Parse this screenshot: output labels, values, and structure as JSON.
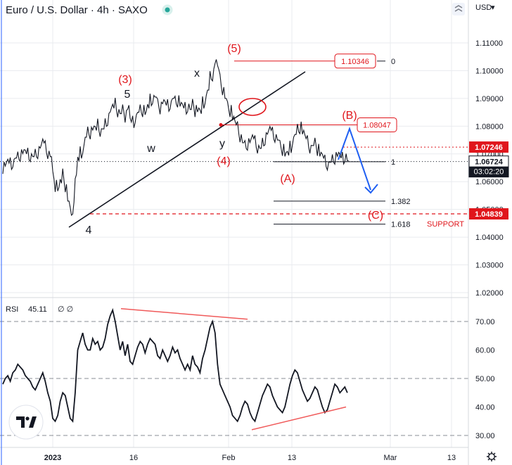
{
  "header": {
    "title": "Euro / U.S. Dollar · 4h · SAXO",
    "currency": "USD",
    "currency_caret": "▾"
  },
  "colors": {
    "price": "#131722",
    "accent_red": "#e0161c",
    "projection_blue": "#1f5ff2",
    "status_green": "#26a69a",
    "axis_tag_dark": "#131722",
    "rsi_line": "#131722",
    "divergence": "#f05a5a",
    "grid": "#e9ebef"
  },
  "chart_data": [
    {
      "type": "line",
      "name": "price",
      "ylabel": "",
      "ylim": [
        1.015,
        1.125
      ],
      "y_ticks": [
        "1.11000",
        "1.10000",
        "1.09000",
        "1.08000",
        "1.07000",
        "1.06000",
        "1.05000",
        "1.04000",
        "1.03000",
        "1.02000"
      ],
      "y_tick_values": [
        1.11,
        1.1,
        1.09,
        1.08,
        1.07,
        1.06,
        1.05,
        1.04,
        1.03,
        1.02
      ],
      "x_ticks": [
        "2023",
        "16",
        "Feb",
        "13",
        "Mar",
        "13"
      ],
      "series": [
        {
          "values": [
            1.0655,
            1.0665,
            1.0672,
            1.066,
            1.067,
            1.0685,
            1.069,
            1.07,
            1.071,
            1.0705,
            1.0695,
            1.069,
            1.069,
            1.07,
            1.071,
            1.073,
            1.0745,
            1.072,
            1.07,
            1.069,
            1.062,
            1.059,
            1.0575,
            1.06,
            1.062,
            1.058,
            1.053,
            1.049,
            1.051,
            1.062,
            1.068,
            1.07,
            1.072,
            1.076,
            1.078,
            1.078,
            1.0795,
            1.079,
            1.08,
            1.078,
            1.079,
            1.081,
            1.083,
            1.086,
            1.087,
            1.0875,
            1.085,
            1.0845,
            1.086,
            1.084,
            1.087,
            1.082,
            1.081,
            1.083,
            1.085,
            1.086,
            1.086,
            1.085,
            1.087,
            1.089,
            1.09,
            1.0905,
            1.088,
            1.087,
            1.089,
            1.088,
            1.087,
            1.088,
            1.09,
            1.089,
            1.0895,
            1.088,
            1.087,
            1.086,
            1.087,
            1.086,
            1.088,
            1.086,
            1.086,
            1.085,
            1.088,
            1.09,
            1.093,
            1.098,
            1.099,
            1.1035,
            1.101,
            1.096,
            1.093,
            1.09,
            1.087,
            1.086,
            1.083,
            1.081,
            1.079,
            1.076,
            1.074,
            1.073,
            1.074,
            1.075,
            1.076,
            1.074,
            1.072,
            1.072,
            1.074,
            1.076,
            1.078,
            1.079,
            1.077,
            1.076,
            1.075,
            1.073,
            1.072,
            1.07,
            1.07,
            1.072,
            1.075,
            1.077,
            1.079,
            1.08,
            1.078,
            1.076,
            1.074,
            1.072,
            1.073,
            1.074,
            1.072,
            1.07,
            1.069,
            1.067,
            1.066,
            1.067,
            1.068,
            1.069,
            1.07,
            1.069,
            1.068,
            1.069,
            1.0675
          ]
        }
      ],
      "current_price": 1.06724,
      "countdown": "03:02:20",
      "axis_tags": [
        {
          "price": 1.07246,
          "label": "1.07246"
        },
        {
          "price": 1.04839,
          "label": "1.04839"
        }
      ],
      "price_boxes": [
        {
          "price": 1.10346,
          "label": "1.10346"
        },
        {
          "price": 1.08047,
          "label": "1.08047"
        }
      ],
      "wave_labels": {
        "w5": "(5)",
        "w3": "(3)",
        "w5_minor": "5",
        "x": "x",
        "w": "w",
        "y": "y",
        "w4": "(4)",
        "wA": "(A)",
        "wB": "(B)",
        "wC": "(C)",
        "w4_minor": "4"
      },
      "fib_levels": [
        {
          "ratio": "0",
          "price": 1.10346
        },
        {
          "ratio": "1",
          "price": 1.0672
        },
        {
          "ratio": "1.382",
          "price": 1.053
        },
        {
          "ratio": "1.618",
          "price": 1.0447
        }
      ],
      "support_label": "SUPPORT"
    },
    {
      "type": "line",
      "name": "RSI",
      "legend_label": "RSI",
      "value_text": "45.11",
      "ylim": [
        25,
        80
      ],
      "y_ticks": [
        "70.00",
        "60.00",
        "50.00",
        "40.00",
        "30.00"
      ],
      "y_tick_values": [
        70,
        60,
        50,
        40,
        30
      ],
      "bands": [
        70,
        50,
        30
      ],
      "series": [
        {
          "values": [
            48,
            50,
            51,
            49,
            52,
            53,
            55,
            54,
            53,
            51,
            50,
            49,
            47,
            46,
            48,
            50,
            52,
            49,
            45,
            42,
            36,
            35,
            37,
            42,
            45,
            44,
            40,
            36,
            35,
            45,
            60,
            63,
            66,
            62,
            60,
            60,
            64,
            62,
            63,
            60,
            61,
            64,
            69,
            72,
            74,
            70,
            65,
            60,
            63,
            58,
            62,
            56,
            55,
            58,
            61,
            63,
            62,
            59,
            62,
            64,
            63,
            62,
            58,
            57,
            60,
            58,
            56,
            58,
            61,
            59,
            60,
            57,
            55,
            53,
            55,
            53,
            58,
            55,
            54,
            52,
            57,
            60,
            64,
            68,
            70,
            66,
            55,
            48,
            46,
            44,
            42,
            40,
            37,
            36,
            35,
            37,
            40,
            42,
            41,
            38,
            36,
            35,
            38,
            41,
            44,
            46,
            48,
            47,
            44,
            42,
            40,
            39,
            38,
            40,
            44,
            48,
            51,
            53,
            52,
            49,
            46,
            44,
            42,
            43,
            45,
            47,
            46,
            43,
            40,
            38,
            39,
            42,
            45,
            48,
            47,
            45,
            46,
            47,
            45
          ]
        }
      ]
    }
  ]
}
